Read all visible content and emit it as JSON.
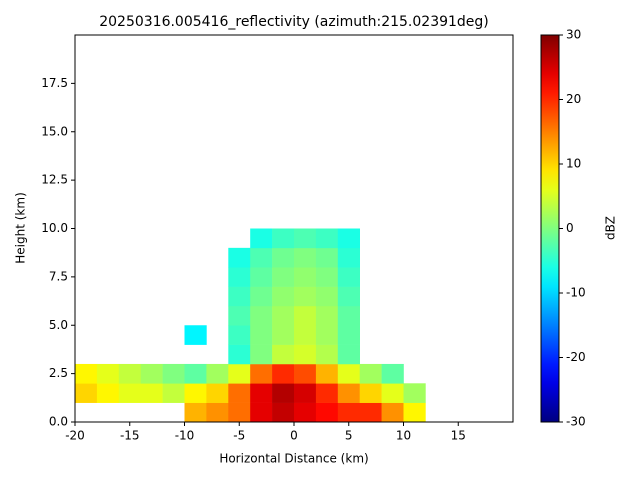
{
  "chart_data": {
    "type": "heatmap",
    "title": "20250316.005416_reflectivity (azimuth:215.02391deg)",
    "xlabel": "Horizontal Distance (km)",
    "ylabel": "Height (km)",
    "colorbar_label": "dBZ",
    "colormap": "jet",
    "xlim": [
      -20,
      20
    ],
    "ylim": [
      0,
      20
    ],
    "xticks": [
      -20,
      -15,
      -10,
      -5,
      0,
      5,
      10,
      15
    ],
    "yticks": [
      {
        "value": 0,
        "label": "0.0"
      },
      2.5,
      {
        "value": 5,
        "label": "5.0"
      },
      7.5,
      {
        "value": 10,
        "label": "10.0"
      },
      12.5,
      {
        "value": 15,
        "label": "15.0"
      },
      17.5
    ],
    "clim": [
      -30,
      30
    ],
    "cticks": [
      -30,
      -20,
      -10,
      0,
      10,
      20,
      30
    ],
    "xbins": [
      -20,
      -18,
      -16,
      -14,
      -12,
      -10,
      -8,
      -6,
      -4,
      -2,
      0,
      2,
      4,
      6,
      8,
      10,
      12
    ],
    "ybins": [
      0,
      1,
      2,
      3,
      4,
      5,
      6,
      7,
      8,
      9,
      10
    ],
    "z": [
      [
        null,
        null,
        null,
        null,
        null,
        12,
        14,
        16,
        24,
        26,
        24,
        22,
        20,
        20,
        14,
        8
      ],
      [
        10,
        8,
        6,
        6,
        4,
        8,
        10,
        16,
        24,
        27,
        25,
        20,
        14,
        10,
        6,
        2
      ],
      [
        8,
        6,
        4,
        2,
        0,
        -2,
        2,
        6,
        16,
        20,
        18,
        12,
        6,
        2,
        -2,
        null
      ],
      [
        null,
        null,
        null,
        null,
        null,
        null,
        null,
        -5,
        0,
        4,
        5,
        3,
        -2,
        null,
        null,
        null
      ],
      [
        null,
        null,
        null,
        null,
        null,
        -8,
        null,
        -4,
        0,
        2,
        4,
        2,
        -2,
        null,
        null,
        null
      ],
      [
        null,
        null,
        null,
        null,
        null,
        null,
        null,
        -3,
        0,
        2,
        4,
        2,
        -2,
        null,
        null,
        null
      ],
      [
        null,
        null,
        null,
        null,
        null,
        null,
        null,
        -4,
        -1,
        1,
        2,
        1,
        -3,
        null,
        null,
        null
      ],
      [
        null,
        null,
        null,
        null,
        null,
        null,
        null,
        -5,
        -2,
        0,
        1,
        0,
        -4,
        null,
        null,
        null
      ],
      [
        null,
        null,
        null,
        null,
        null,
        null,
        null,
        -6,
        -3,
        -1,
        0,
        -1,
        -5,
        null,
        null,
        null
      ],
      [
        null,
        null,
        null,
        null,
        null,
        null,
        null,
        null,
        -6,
        -4,
        -3,
        -4,
        -6,
        null,
        null,
        null
      ]
    ]
  }
}
